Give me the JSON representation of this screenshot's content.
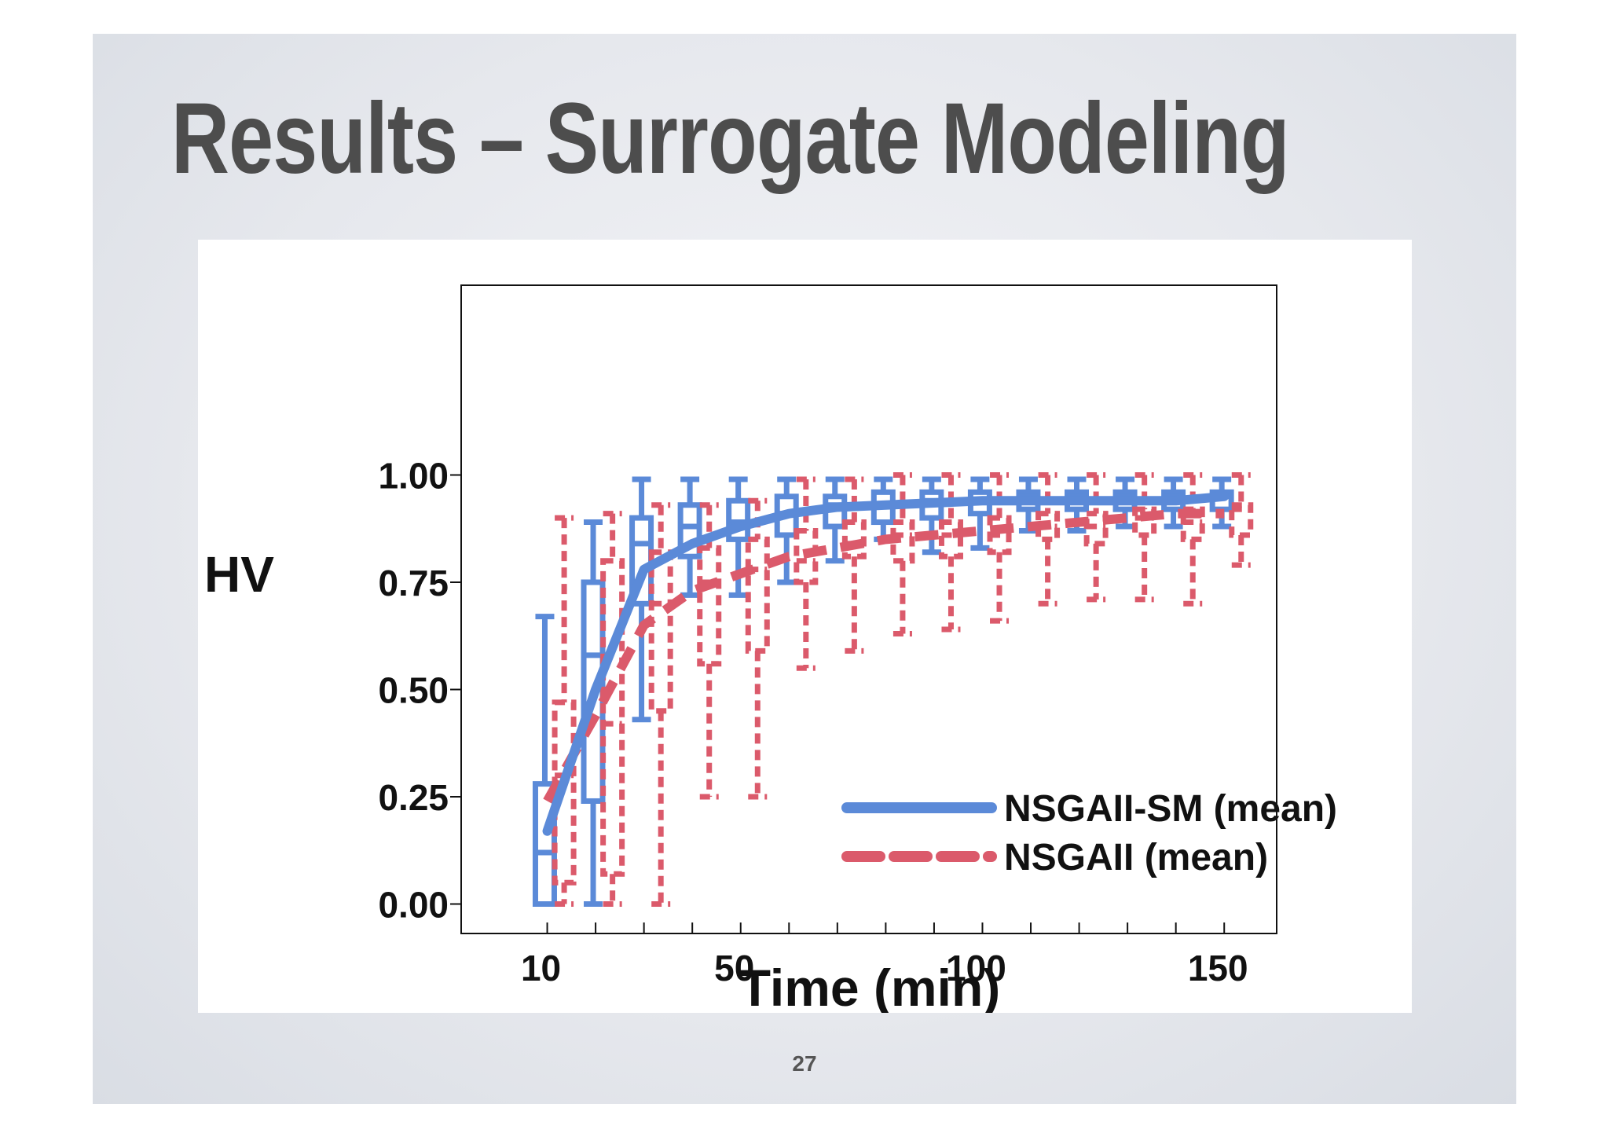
{
  "slide": {
    "title": "Results – Surrogate Modeling",
    "page_number": "27"
  },
  "chart_data": {
    "type": "box",
    "xlabel": "Time (min)",
    "ylabel": "HV",
    "xlim": [
      0,
      155
    ],
    "ylim": [
      -0.05,
      1.1
    ],
    "x_ticks": [
      10,
      50,
      100,
      150
    ],
    "x_ticks_minor": [
      20,
      30,
      40,
      60,
      70,
      80,
      90,
      110,
      120,
      130,
      140
    ],
    "y_ticks": [
      0.0,
      0.25,
      0.5,
      0.75,
      1.0
    ],
    "y_tick_labels": [
      "0.00",
      "0.25",
      "0.50",
      "0.75",
      "1.00"
    ],
    "grid": false,
    "legend_position": "bottom-right",
    "series": [
      {
        "name": "NSGAII-SM (mean)",
        "color": "#5b8ad8",
        "line_style": "solid",
        "mean_line": {
          "x": [
            10,
            20,
            30,
            40,
            50,
            60,
            70,
            80,
            90,
            100,
            110,
            120,
            130,
            140,
            150
          ],
          "y": [
            0.17,
            0.5,
            0.78,
            0.84,
            0.88,
            0.91,
            0.925,
            0.93,
            0.935,
            0.94,
            0.94,
            0.94,
            0.94,
            0.94,
            0.95
          ]
        },
        "boxes": [
          {
            "x": 9.5,
            "min": 0.0,
            "q1": 0.0,
            "median": 0.12,
            "q3": 0.28,
            "max": 0.67
          },
          {
            "x": 19.5,
            "min": 0.0,
            "q1": 0.24,
            "median": 0.58,
            "q3": 0.75,
            "max": 0.89
          },
          {
            "x": 29.5,
            "min": 0.43,
            "q1": 0.7,
            "median": 0.84,
            "q3": 0.9,
            "max": 0.99
          },
          {
            "x": 39.5,
            "min": 0.72,
            "q1": 0.81,
            "median": 0.88,
            "q3": 0.93,
            "max": 0.99
          },
          {
            "x": 49.5,
            "min": 0.72,
            "q1": 0.85,
            "median": 0.89,
            "q3": 0.94,
            "max": 0.99
          },
          {
            "x": 59.5,
            "min": 0.75,
            "q1": 0.86,
            "median": 0.91,
            "q3": 0.95,
            "max": 0.99
          },
          {
            "x": 69.5,
            "min": 0.8,
            "q1": 0.88,
            "median": 0.93,
            "q3": 0.95,
            "max": 0.99
          },
          {
            "x": 79.5,
            "min": 0.85,
            "q1": 0.89,
            "median": 0.93,
            "q3": 0.96,
            "max": 0.99
          },
          {
            "x": 89.5,
            "min": 0.82,
            "q1": 0.9,
            "median": 0.94,
            "q3": 0.96,
            "max": 0.99
          },
          {
            "x": 99.5,
            "min": 0.83,
            "q1": 0.91,
            "median": 0.94,
            "q3": 0.96,
            "max": 0.99
          },
          {
            "x": 109.5,
            "min": 0.87,
            "q1": 0.92,
            "median": 0.95,
            "q3": 0.96,
            "max": 0.99
          },
          {
            "x": 119.5,
            "min": 0.87,
            "q1": 0.92,
            "median": 0.95,
            "q3": 0.96,
            "max": 0.99
          },
          {
            "x": 129.5,
            "min": 0.88,
            "q1": 0.92,
            "median": 0.95,
            "q3": 0.96,
            "max": 0.99
          },
          {
            "x": 139.5,
            "min": 0.88,
            "q1": 0.92,
            "median": 0.95,
            "q3": 0.96,
            "max": 0.99
          },
          {
            "x": 149.5,
            "min": 0.88,
            "q1": 0.92,
            "median": 0.95,
            "q3": 0.96,
            "max": 0.99
          }
        ]
      },
      {
        "name": "NSGAII (mean)",
        "color": "#db5a6b",
        "line_style": "dashed",
        "mean_line": {
          "x": [
            10,
            20,
            30,
            40,
            50,
            60,
            70,
            80,
            90,
            100,
            110,
            120,
            130,
            140,
            150
          ],
          "y": [
            0.24,
            0.44,
            0.65,
            0.73,
            0.77,
            0.81,
            0.83,
            0.85,
            0.86,
            0.87,
            0.88,
            0.89,
            0.9,
            0.91,
            0.91
          ]
        },
        "boxes": [
          {
            "x": 13.5,
            "min": 0.0,
            "q1": 0.05,
            "median": 0.3,
            "q3": 0.47,
            "max": 0.9
          },
          {
            "x": 23.5,
            "min": 0.0,
            "q1": 0.07,
            "median": 0.42,
            "q3": 0.8,
            "max": 0.91
          },
          {
            "x": 33.5,
            "min": 0.0,
            "q1": 0.45,
            "median": 0.7,
            "q3": 0.82,
            "max": 0.93
          },
          {
            "x": 43.5,
            "min": 0.25,
            "q1": 0.56,
            "median": 0.75,
            "q3": 0.83,
            "max": 0.93
          },
          {
            "x": 53.5,
            "min": 0.25,
            "q1": 0.59,
            "median": 0.78,
            "q3": 0.85,
            "max": 0.94
          },
          {
            "x": 63.5,
            "min": 0.55,
            "q1": 0.75,
            "median": 0.8,
            "q3": 0.87,
            "max": 0.99
          },
          {
            "x": 73.5,
            "min": 0.59,
            "q1": 0.81,
            "median": 0.84,
            "q3": 0.89,
            "max": 0.99
          },
          {
            "x": 83.5,
            "min": 0.63,
            "q1": 0.8,
            "median": 0.86,
            "q3": 0.89,
            "max": 1.0
          },
          {
            "x": 93.5,
            "min": 0.64,
            "q1": 0.81,
            "median": 0.86,
            "q3": 0.89,
            "max": 1.0
          },
          {
            "x": 103.5,
            "min": 0.66,
            "q1": 0.82,
            "median": 0.86,
            "q3": 0.9,
            "max": 1.0
          },
          {
            "x": 113.5,
            "min": 0.7,
            "q1": 0.85,
            "median": 0.88,
            "q3": 0.91,
            "max": 1.0
          },
          {
            "x": 123.5,
            "min": 0.71,
            "q1": 0.84,
            "median": 0.88,
            "q3": 0.91,
            "max": 1.0
          },
          {
            "x": 133.5,
            "min": 0.71,
            "q1": 0.86,
            "median": 0.9,
            "q3": 0.92,
            "max": 1.0
          },
          {
            "x": 143.5,
            "min": 0.7,
            "q1": 0.85,
            "median": 0.89,
            "q3": 0.92,
            "max": 1.0
          },
          {
            "x": 153.5,
            "min": 0.79,
            "q1": 0.86,
            "median": 0.92,
            "q3": 0.93,
            "max": 1.0
          }
        ]
      }
    ]
  }
}
